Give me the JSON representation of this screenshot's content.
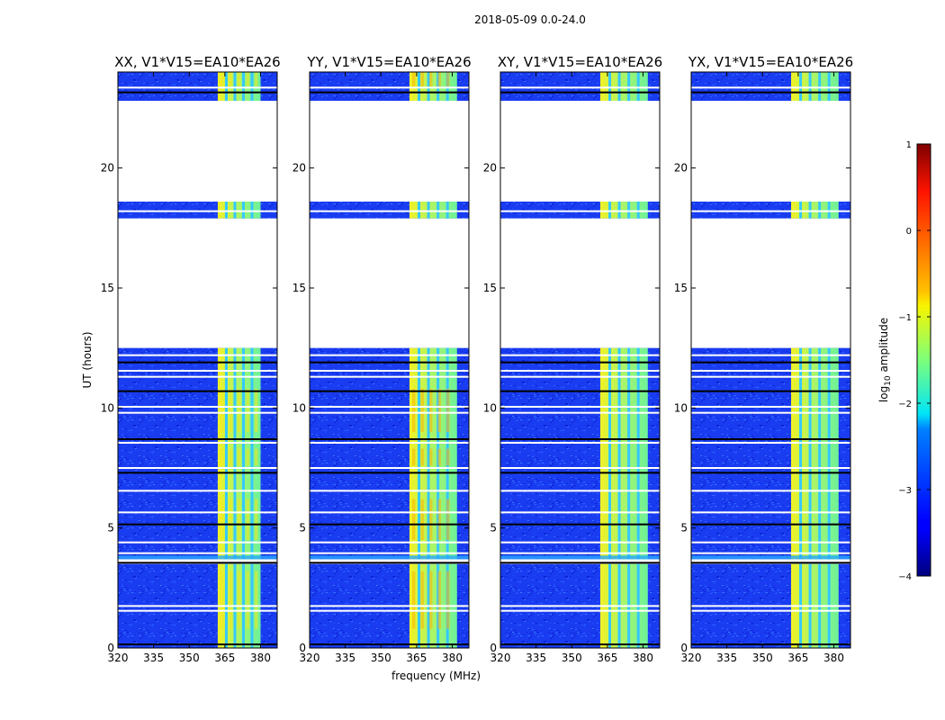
{
  "figure_title": "2018-05-09 0.0-24.0",
  "chart_data": {
    "type": "heatmap",
    "colormap": "jet",
    "title": "2018-05-09 0.0-24.0",
    "xlabel": "frequency (MHz)",
    "ylabel": "UT (hours)",
    "xlim": [
      320,
      387
    ],
    "ylim": [
      0,
      24
    ],
    "xticks": [
      320,
      335,
      350,
      365,
      380
    ],
    "yticks": [
      0,
      5,
      10,
      15,
      20
    ],
    "colorbar": {
      "label_prefix": "log",
      "label_sub": "10",
      "label_suffix": " amplitude",
      "range": [
        -4,
        1
      ],
      "ticks": [
        -4,
        -3,
        -2,
        -1,
        0,
        1
      ]
    },
    "signal_band_mhz": [
      362,
      382
    ],
    "observed_time_blocks_hours": [
      [
        0,
        3.5
      ],
      [
        3.7,
        12.5
      ],
      [
        17.9,
        18.6
      ],
      [
        22.8,
        24
      ]
    ],
    "panels": [
      {
        "title": "XX, V1*V15=EA10*EA26",
        "show_ylabel": true,
        "show_xlabel": false
      },
      {
        "title": "YY, V1*V15=EA10*EA26",
        "show_ylabel": false,
        "show_xlabel": true
      },
      {
        "title": "XY, V1*V15=EA10*EA26",
        "show_ylabel": false,
        "show_xlabel": false
      },
      {
        "title": "YX, V1*V15=EA10*EA26",
        "show_ylabel": false,
        "show_xlabel": false
      }
    ]
  }
}
